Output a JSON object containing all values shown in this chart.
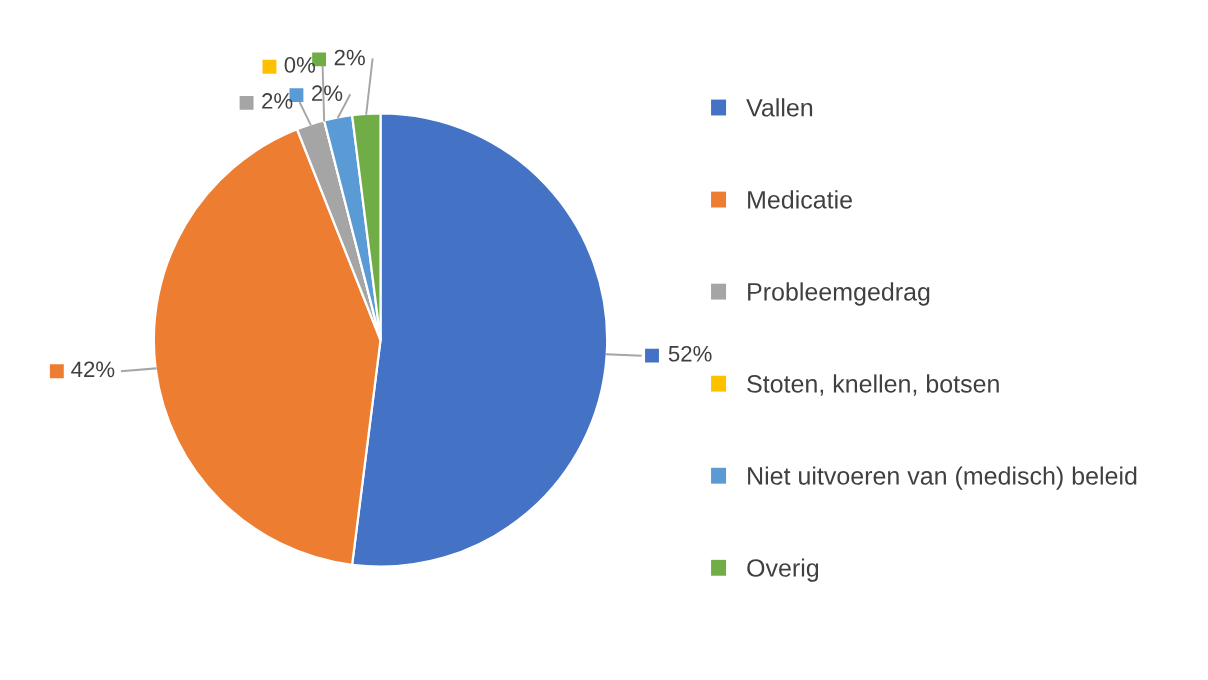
{
  "chart_data": {
    "type": "pie",
    "categories": [
      "Vallen",
      "Medicatie",
      "Probleemgedrag",
      "Stoten, knellen, botsen",
      "Niet uitvoeren van (medisch) beleid",
      "Overig"
    ],
    "values": [
      52,
      42,
      2,
      0,
      2,
      2
    ],
    "colors": [
      "#4472c4",
      "#ed7d31",
      "#a5a5a5",
      "#ffc000",
      "#5b9bd5",
      "#70ad47"
    ],
    "value_labels": [
      "52%",
      "42%",
      "2%",
      "0%",
      "2%",
      "2%"
    ],
    "legend": "right"
  }
}
